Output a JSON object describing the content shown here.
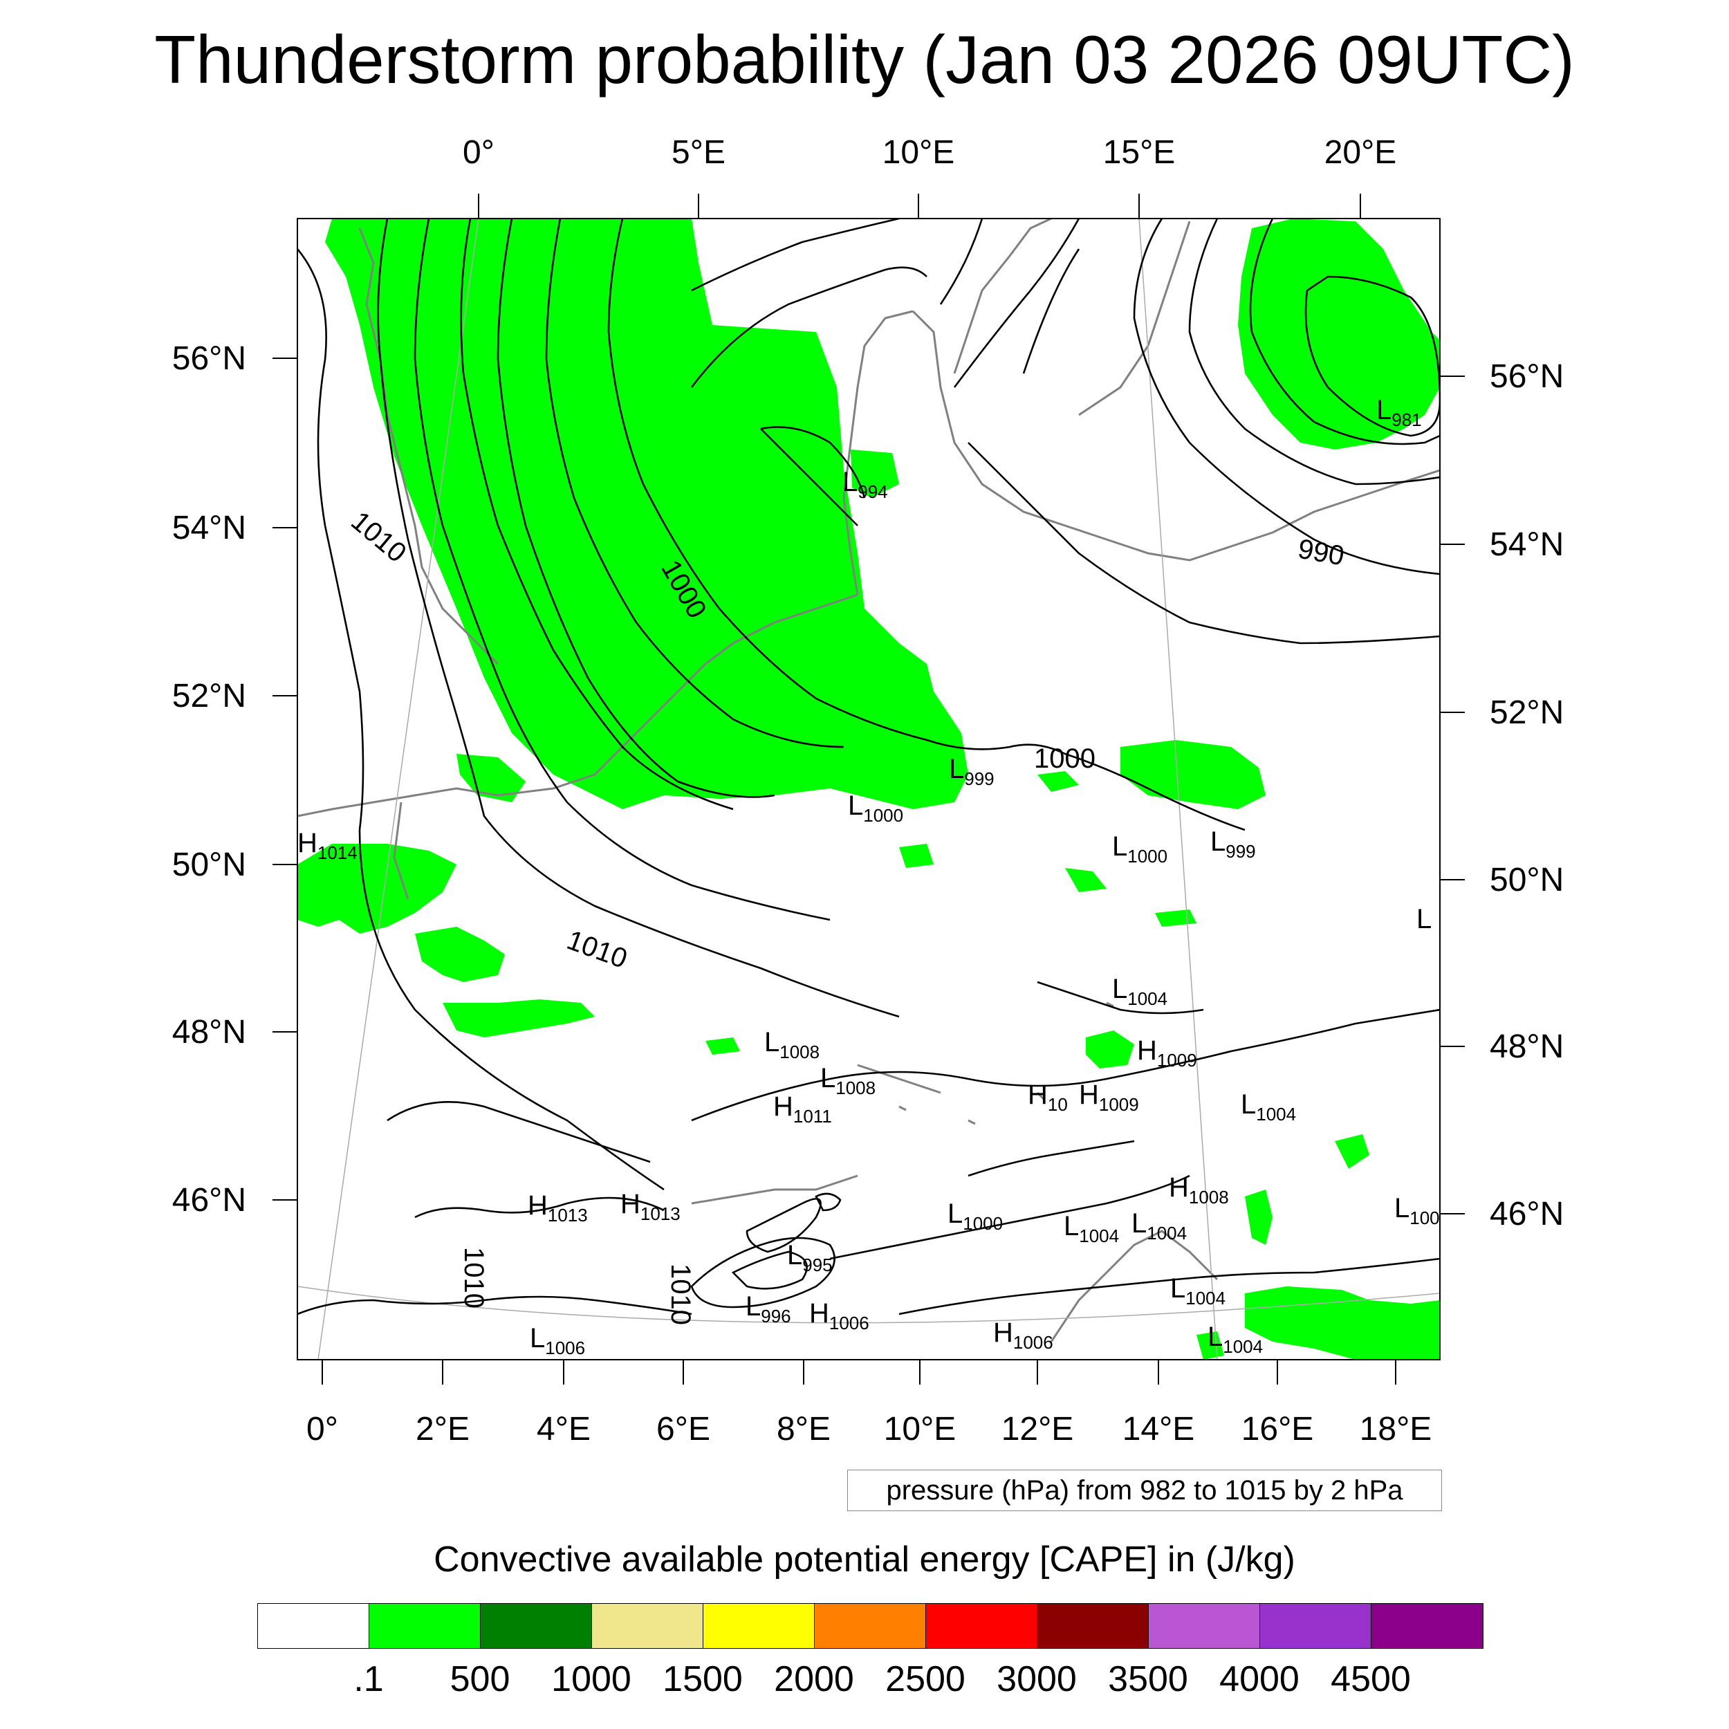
{
  "title": "Thunderstorm probability (Jan 03 2026 09UTC)",
  "map": {
    "top_lon_labels": [
      "0°",
      "5°E",
      "10°E",
      "15°E",
      "20°E"
    ],
    "bottom_lon_labels": [
      "0°",
      "2°E",
      "4°E",
      "6°E",
      "8°E",
      "10°E",
      "12°E",
      "14°E",
      "16°E",
      "18°E"
    ],
    "left_lat_labels": [
      "56°N",
      "54°N",
      "52°N",
      "50°N",
      "48°N",
      "46°N"
    ],
    "right_lat_labels": [
      "56°N",
      "54°N",
      "52°N",
      "50°N",
      "48°N",
      "46°N"
    ],
    "contour_labels": [
      "1010",
      "1000",
      "990",
      "1000",
      "1010",
      "1010",
      "1010"
    ],
    "pressure_centers": [
      {
        "kind": "L",
        "value": "981"
      },
      {
        "kind": "L",
        "value": "994"
      },
      {
        "kind": "H",
        "value": "1014"
      },
      {
        "kind": "L",
        "value": "999"
      },
      {
        "kind": "L",
        "value": "1000"
      },
      {
        "kind": "L",
        "value": "1000"
      },
      {
        "kind": "L",
        "value": "999"
      },
      {
        "kind": "L",
        "value": ""
      },
      {
        "kind": "L",
        "value": "1004"
      },
      {
        "kind": "L",
        "value": "1008"
      },
      {
        "kind": "H",
        "value": "1009"
      },
      {
        "kind": "L",
        "value": "1008"
      },
      {
        "kind": "H",
        "value": "10"
      },
      {
        "kind": "H",
        "value": "1009"
      },
      {
        "kind": "H",
        "value": "1011"
      },
      {
        "kind": "L",
        "value": "1004"
      },
      {
        "kind": "H",
        "value": "1008"
      },
      {
        "kind": "H",
        "value": "1013"
      },
      {
        "kind": "H",
        "value": "1013"
      },
      {
        "kind": "L",
        "value": "1000"
      },
      {
        "kind": "L",
        "value": "1004"
      },
      {
        "kind": "L",
        "value": "1004"
      },
      {
        "kind": "L",
        "value": "100"
      },
      {
        "kind": "L",
        "value": "995"
      },
      {
        "kind": "L",
        "value": "1004"
      },
      {
        "kind": "L",
        "value": "996"
      },
      {
        "kind": "H",
        "value": "1006"
      },
      {
        "kind": "L",
        "value": "1006"
      },
      {
        "kind": "H",
        "value": "1006"
      },
      {
        "kind": "L",
        "value": "1004"
      }
    ],
    "cape_fill_color": "#00ff00"
  },
  "info_box": "pressure (hPa) from 982 to 1015 by 2 hPa",
  "colorbar": {
    "title": "Convective available potential energy [CAPE] in (J/kg)",
    "colors": [
      "#ffffff",
      "#00ff00",
      "#008000",
      "#f0e68c",
      "#ffff00",
      "#ff8000",
      "#ff0000",
      "#8b0000",
      "#ba55d3",
      "#9932cc",
      "#8b008b"
    ],
    "labels": [
      ".1",
      "500",
      "1000",
      "1500",
      "2000",
      "2500",
      "3000",
      "3500",
      "4000",
      "4500"
    ]
  }
}
